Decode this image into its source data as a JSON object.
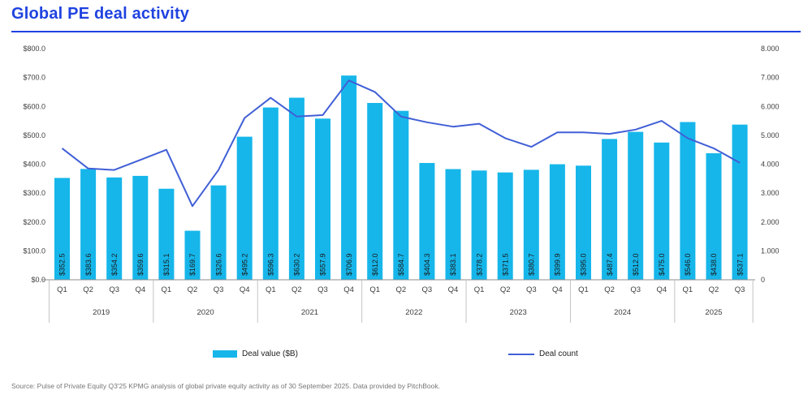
{
  "header": {
    "title": "Global PE deal activity"
  },
  "legend": {
    "bar_label": "Deal value ($B)",
    "line_label": "Deal count"
  },
  "source": "Source: Pulse of Private Equity Q3'25 KPMG analysis of global private equity activity as of 30 September 2025. Data provided by PitchBook.",
  "colors": {
    "bar": "#16b6ea",
    "line": "#415fd6",
    "title": "#1f43e0",
    "axis_text": "#3d3d3d",
    "bar_label_text": "#1a1a1a",
    "axis_line": "#8c8c8c",
    "separator": "#c4c4c4",
    "source_text": "#767676"
  },
  "chart_data": {
    "type": "combo-bar-line",
    "title": "Global PE deal activity",
    "grid": false,
    "legend_position": "bottom",
    "years": [
      {
        "label": "2019",
        "quarters": [
          "Q1",
          "Q2",
          "Q3",
          "Q4"
        ]
      },
      {
        "label": "2020",
        "quarters": [
          "Q1",
          "Q2",
          "Q3",
          "Q4"
        ]
      },
      {
        "label": "2021",
        "quarters": [
          "Q1",
          "Q2",
          "Q3",
          "Q4"
        ]
      },
      {
        "label": "2022",
        "quarters": [
          "Q1",
          "Q2",
          "Q3",
          "Q4"
        ]
      },
      {
        "label": "2023",
        "quarters": [
          "Q1",
          "Q2",
          "Q3",
          "Q4"
        ]
      },
      {
        "label": "2024",
        "quarters": [
          "Q1",
          "Q2",
          "Q3",
          "Q4"
        ]
      },
      {
        "label": "2025",
        "quarters": [
          "Q1",
          "Q2",
          "Q3"
        ]
      }
    ],
    "series": [
      {
        "name": "Deal value ($B)",
        "type": "bar",
        "axis": "left",
        "values": [
          352.5,
          383.6,
          354.2,
          359.6,
          315.1,
          169.7,
          326.6,
          495.2,
          596.3,
          630.2,
          557.9,
          706.9,
          612.0,
          584.7,
          404.3,
          383.1,
          378.2,
          371.5,
          380.7,
          399.9,
          395.0,
          487.4,
          512.0,
          475.0,
          546.0,
          438.0,
          537.1
        ],
        "labels": [
          "$352.5",
          "$383.6",
          "$354.2",
          "$359.6",
          "$315.1",
          "$169.7",
          "$326.6",
          "$495.2",
          "$596.3",
          "$630.2",
          "$557.9",
          "$706.9",
          "$612.0",
          "$584.7",
          "$404.3",
          "$383.1",
          "$378.2",
          "$371.5",
          "$380.7",
          "$399.9",
          "$395.0",
          "$487.4",
          "$512.0",
          "$475.0",
          "$546.0",
          "$438.0",
          "$537.1"
        ]
      },
      {
        "name": "Deal count",
        "type": "line",
        "axis": "right",
        "values": [
          4550,
          3850,
          3800,
          4150,
          4500,
          2550,
          3800,
          5600,
          6300,
          5650,
          5700,
          6900,
          6500,
          5650,
          5450,
          5300,
          5400,
          4900,
          4600,
          5100,
          5100,
          5050,
          5200,
          5500,
          4900,
          4550,
          4050
        ]
      }
    ],
    "left_axis": {
      "range": [
        0,
        800
      ],
      "tick_step": 100,
      "tick_labels": [
        "$0.0",
        "$100.0",
        "$200.0",
        "$300.0",
        "$400.0",
        "$500.0",
        "$600.0",
        "$700.0",
        "$800.0"
      ]
    },
    "right_axis": {
      "range": [
        0,
        8000
      ],
      "tick_step": 1000,
      "tick_labels": [
        "0",
        "1.000",
        "2.000",
        "3.000",
        "4.000",
        "5.000",
        "6.000",
        "7.000",
        "8.000"
      ]
    }
  }
}
